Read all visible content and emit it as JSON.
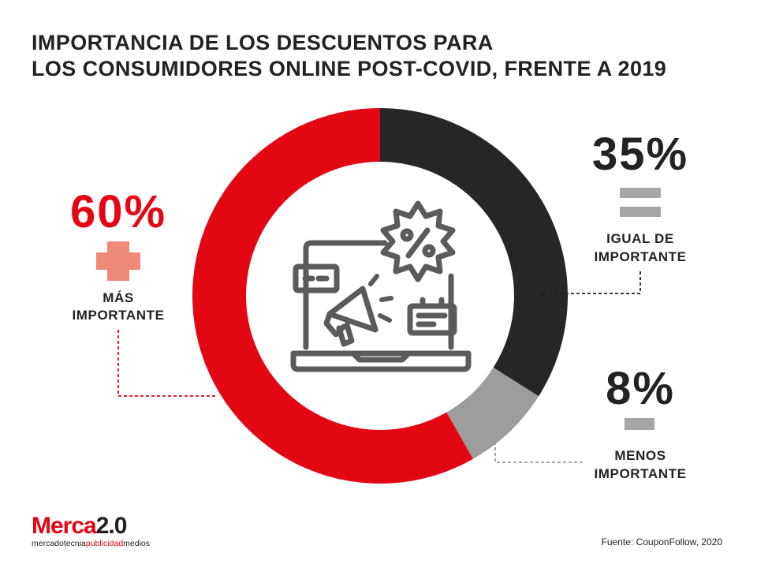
{
  "title": "IMPORTANCIA DE LOS DESCUENTOS PARA\nLOS CONSUMIDORES ONLINE POST-COVID, FRENTE A 2019",
  "chart_data": {
    "type": "pie",
    "title": "IMPORTANCIA DE LOS DESCUENTOS PARA LOS CONSUMIDORES ONLINE POST-COVID, FRENTE A 2019",
    "slices": [
      {
        "label": "IGUAL DE IMPORTANTE",
        "value": 35,
        "value_label": "35%",
        "color": "#262626",
        "symbol": "equals"
      },
      {
        "label": "MENOS IMPORTANTE",
        "value": 8,
        "value_label": "8%",
        "color": "#9d9d9d",
        "symbol": "minus"
      },
      {
        "label": "MÁS IMPORTANTE",
        "value": 60,
        "value_label": "60%",
        "color": "#e30613",
        "symbol": "plus"
      }
    ],
    "labels_print": {
      "igual": [
        "IGUAL DE",
        "IMPORTANTE"
      ],
      "menos": [
        "MENOS",
        "IMPORTANTE"
      ],
      "mas": [
        "MÁS",
        "IMPORTANTE"
      ]
    },
    "start_angle_deg": 0,
    "direction": "clockwise",
    "center_icon": "laptop-megaphone-discount-icon"
  },
  "colors": {
    "red": "#e30613",
    "dark": "#262626",
    "gray": "#9d9d9d",
    "plus": "#f08a78",
    "symbol_gray": "#a6a6a6",
    "icon": "#5b5b5b"
  },
  "logo": {
    "main": "Merca",
    "version": "2.0",
    "tag_a": "mercadotecnia",
    "tag_b": "publicidad",
    "tag_c": "medios"
  },
  "source": "Fuente: CouponFollow, 2020"
}
